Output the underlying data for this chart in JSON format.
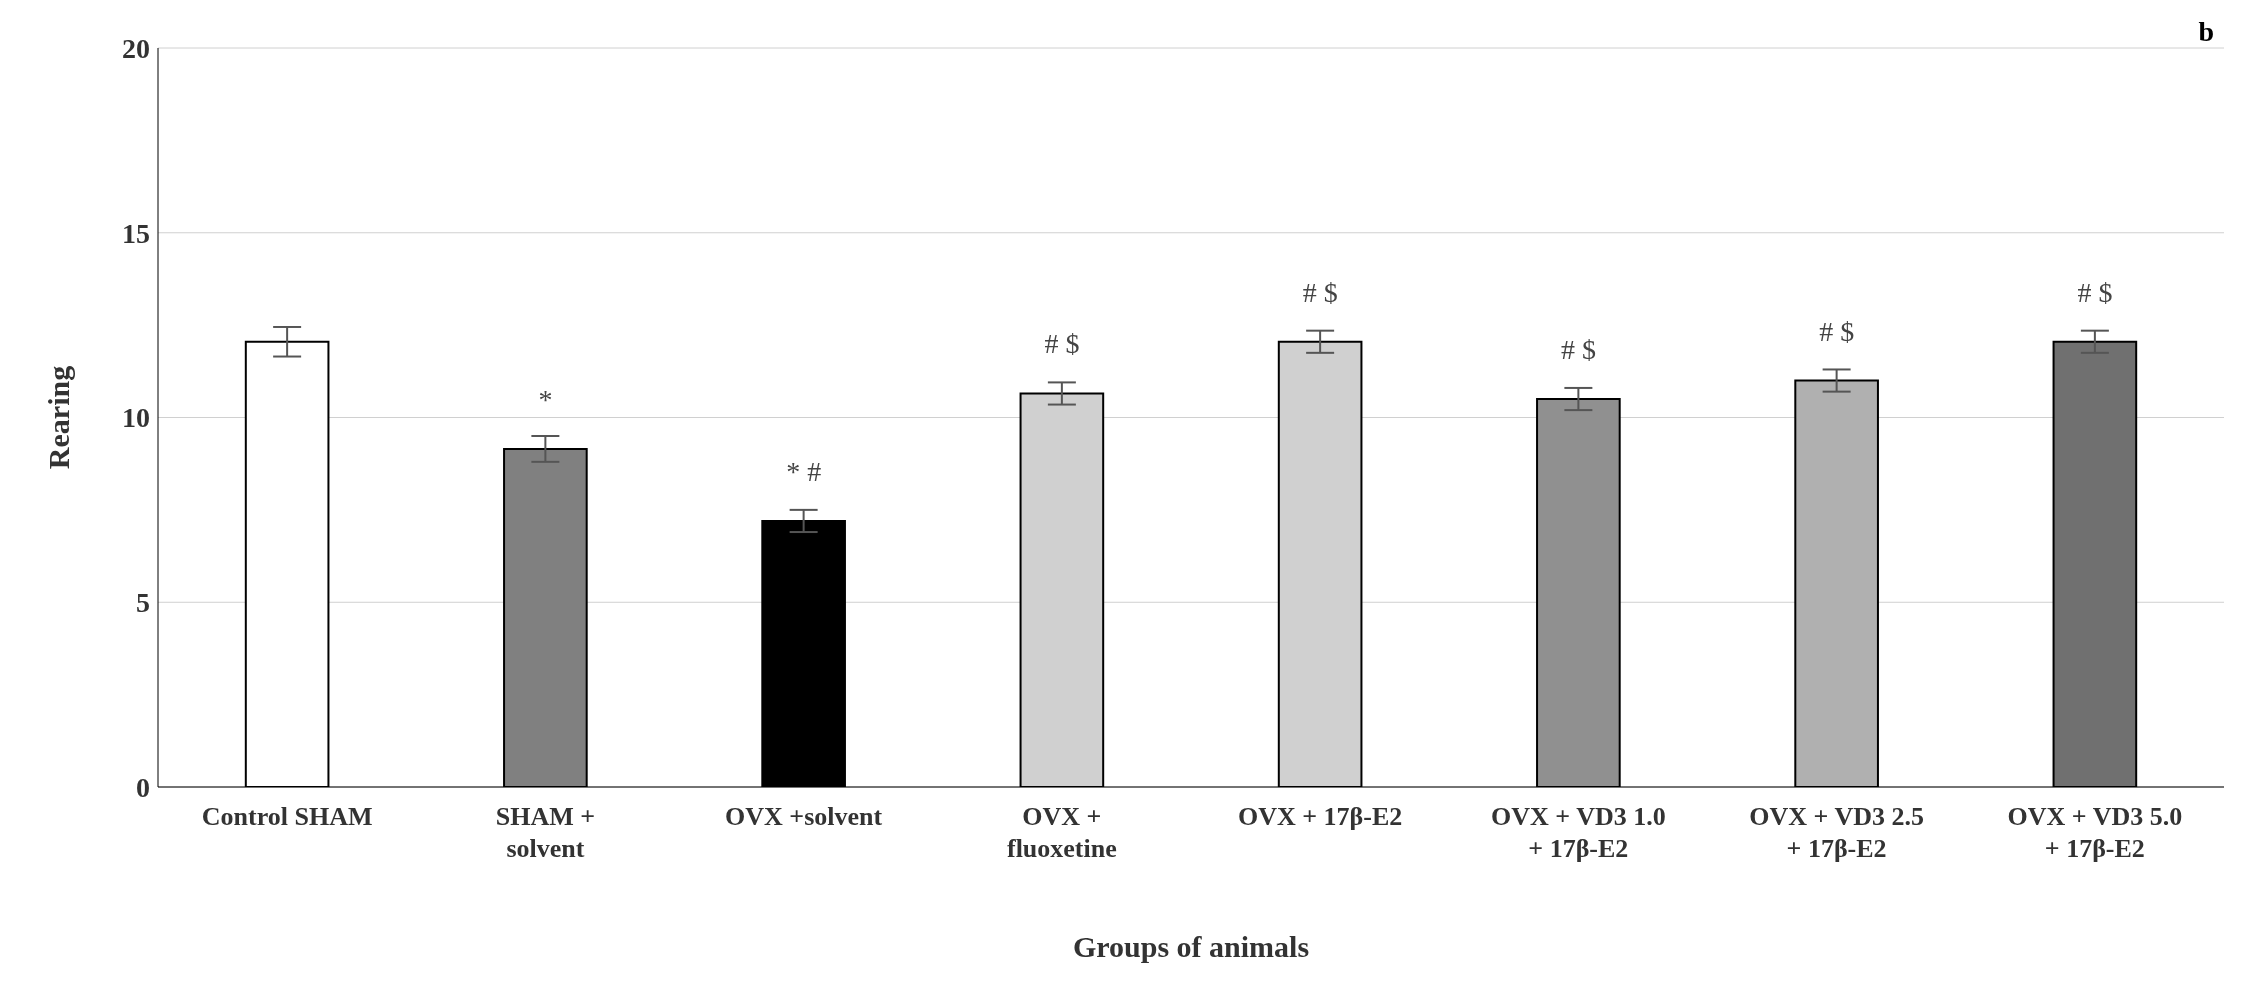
{
  "chart_data": {
    "type": "bar",
    "xlabel": "Groups of animals",
    "ylabel": "Rearing",
    "categories": [
      "Control SHAM",
      "SHAM + solvent",
      "OVX +solvent",
      "OVX + fluoxetine",
      "OVX + 17β-E2",
      "OVX + VD3 1.0 + 17β-E2",
      "OVX + VD3 2.5 + 17β-E2",
      "OVX + VD3 5.0 + 17β-E2"
    ],
    "values": [
      12.05,
      9.15,
      7.2,
      10.65,
      12.05,
      10.5,
      11.0,
      12.05
    ],
    "errors": [
      0.4,
      0.35,
      0.3,
      0.3,
      0.3,
      0.3,
      0.3,
      0.3
    ],
    "colors": [
      "#ffffff",
      "#808080",
      "#000000",
      "#d0d0d0",
      "#d0d0d0",
      "#909090",
      "#b0b0b0",
      "#707070"
    ],
    "ylim": [
      0,
      20
    ],
    "yticks": [
      0,
      5,
      10,
      15,
      20
    ],
    "grid": "y",
    "legend": false,
    "annotations": [
      {
        "text": "*",
        "x": "SHAM + solvent",
        "y": 9.15
      },
      {
        "text": "* #",
        "x": "OVX +solvent",
        "y": 7.2
      },
      {
        "text": "# $",
        "x": "OVX + fluoxetine",
        "y": 10.65
      },
      {
        "text": "# $",
        "x": "OVX + 17β-E2",
        "y": 12.05
      },
      {
        "text": "# $",
        "x": "OVX + VD3 1.0 + 17β-E2",
        "y": 10.5
      },
      {
        "text": "# $",
        "x": "OVX + VD3 2.5 + 17β-E2",
        "y": 11.0
      },
      {
        "text": "# $",
        "x": "OVX + VD3 5.0 + 17β-E2",
        "y": 12.05
      },
      "b"
    ]
  }
}
